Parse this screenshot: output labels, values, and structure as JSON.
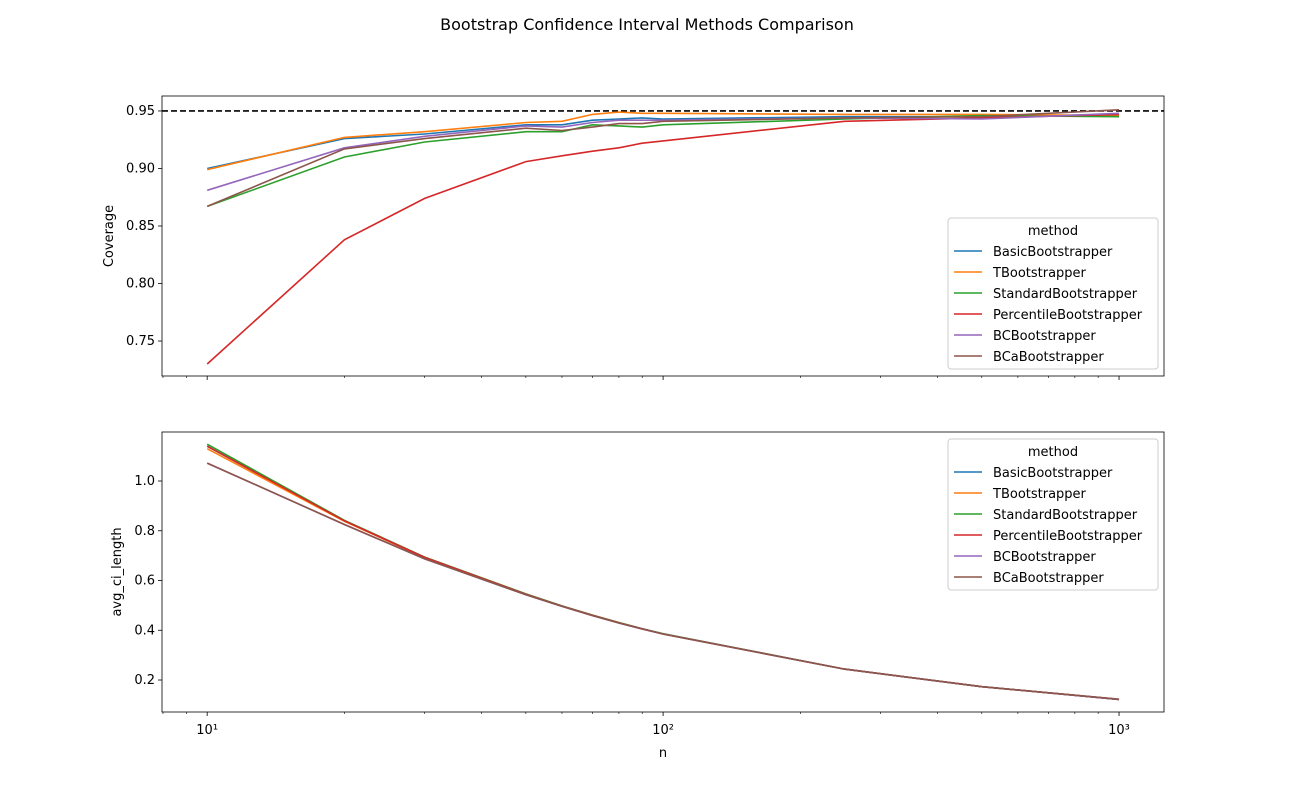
{
  "title": "Bootstrap Confidence Interval Methods Comparison",
  "chart_data": [
    {
      "type": "line",
      "ylabel": "Coverage",
      "xlabel": "",
      "xscale": "log",
      "xlim": [
        7.96,
        1255
      ],
      "ylim": [
        0.7196,
        0.963
      ],
      "yticks": [
        0.75,
        0.8,
        0.85,
        0.9,
        0.95
      ],
      "ytick_labels": [
        "0.75",
        "0.80",
        "0.85",
        "0.90",
        "0.95"
      ],
      "reference_line": {
        "y": 0.95,
        "style": "dashed",
        "color": "#000000"
      },
      "legend": {
        "title": "method",
        "placement": "lower-right"
      },
      "x": [
        10,
        20,
        30,
        50,
        60,
        70,
        80,
        90,
        100,
        250,
        500,
        1000
      ],
      "series": [
        {
          "name": "BasicBootstrapper",
          "color": "#1f77b4",
          "values": [
            0.9,
            0.926,
            0.93,
            0.938,
            0.938,
            0.942,
            0.943,
            0.944,
            0.943,
            0.945,
            0.945,
            0.947
          ]
        },
        {
          "name": "TBootstrapper",
          "color": "#ff7f0e",
          "values": [
            0.899,
            0.927,
            0.932,
            0.94,
            0.941,
            0.947,
            0.949,
            0.948,
            0.948,
            0.947,
            0.947,
            0.946
          ]
        },
        {
          "name": "StandardBootstrapper",
          "color": "#2ca02c",
          "values": [
            0.867,
            0.91,
            0.923,
            0.932,
            0.932,
            0.938,
            0.937,
            0.936,
            0.938,
            0.943,
            0.946,
            0.945
          ]
        },
        {
          "name": "PercentileBootstrapper",
          "color": "#d62728",
          "values": [
            0.73,
            0.838,
            0.874,
            0.906,
            0.911,
            0.915,
            0.918,
            0.922,
            0.924,
            0.941,
            0.944,
            0.947
          ]
        },
        {
          "name": "BCBootstrapper",
          "color": "#9467bd",
          "values": [
            0.881,
            0.918,
            0.928,
            0.937,
            0.936,
            0.94,
            0.942,
            0.942,
            0.942,
            0.944,
            0.943,
            0.948
          ]
        },
        {
          "name": "BCaBootstrapper",
          "color": "#8c564b",
          "values": [
            0.867,
            0.917,
            0.926,
            0.935,
            0.933,
            0.936,
            0.939,
            0.939,
            0.941,
            0.944,
            0.945,
            0.951
          ]
        }
      ]
    },
    {
      "type": "line",
      "ylabel": "avg_ci_length",
      "xlabel": "n",
      "xscale": "log",
      "xlim": [
        7.96,
        1255
      ],
      "ylim": [
        0.0714,
        1.197
      ],
      "yticks": [
        0.2,
        0.4,
        0.6,
        0.8,
        1.0
      ],
      "ytick_labels": [
        "0.2",
        "0.4",
        "0.6",
        "0.8",
        "1.0"
      ],
      "xticks": [
        10,
        100,
        1000
      ],
      "xtick_labels": [
        "10¹",
        "10²",
        "10³"
      ],
      "legend": {
        "title": "method",
        "placement": "upper-right"
      },
      "x": [
        10,
        20,
        30,
        50,
        60,
        70,
        80,
        90,
        100,
        250,
        500,
        1000
      ],
      "series": [
        {
          "name": "BasicBootstrapper",
          "color": "#1f77b4",
          "values": [
            1.14,
            0.84,
            0.692,
            0.545,
            0.497,
            0.46,
            0.43,
            0.406,
            0.385,
            0.244,
            0.173,
            0.122
          ]
        },
        {
          "name": "TBootstrapper",
          "color": "#ff7f0e",
          "values": [
            1.13,
            0.838,
            0.692,
            0.545,
            0.497,
            0.46,
            0.43,
            0.406,
            0.385,
            0.244,
            0.173,
            0.122
          ]
        },
        {
          "name": "StandardBootstrapper",
          "color": "#2ca02c",
          "values": [
            1.148,
            0.842,
            0.694,
            0.546,
            0.498,
            0.461,
            0.431,
            0.406,
            0.386,
            0.244,
            0.173,
            0.122
          ]
        },
        {
          "name": "PercentileBootstrapper",
          "color": "#d62728",
          "values": [
            1.14,
            0.84,
            0.693,
            0.545,
            0.497,
            0.46,
            0.43,
            0.406,
            0.385,
            0.244,
            0.173,
            0.122
          ]
        },
        {
          "name": "BCBootstrapper",
          "color": "#9467bd",
          "values": [
            1.072,
            0.825,
            0.687,
            0.543,
            0.496,
            0.459,
            0.429,
            0.405,
            0.385,
            0.244,
            0.173,
            0.122
          ]
        },
        {
          "name": "BCaBootstrapper",
          "color": "#8c564b",
          "values": [
            1.072,
            0.825,
            0.687,
            0.543,
            0.496,
            0.459,
            0.429,
            0.405,
            0.385,
            0.244,
            0.173,
            0.123
          ]
        }
      ]
    }
  ]
}
